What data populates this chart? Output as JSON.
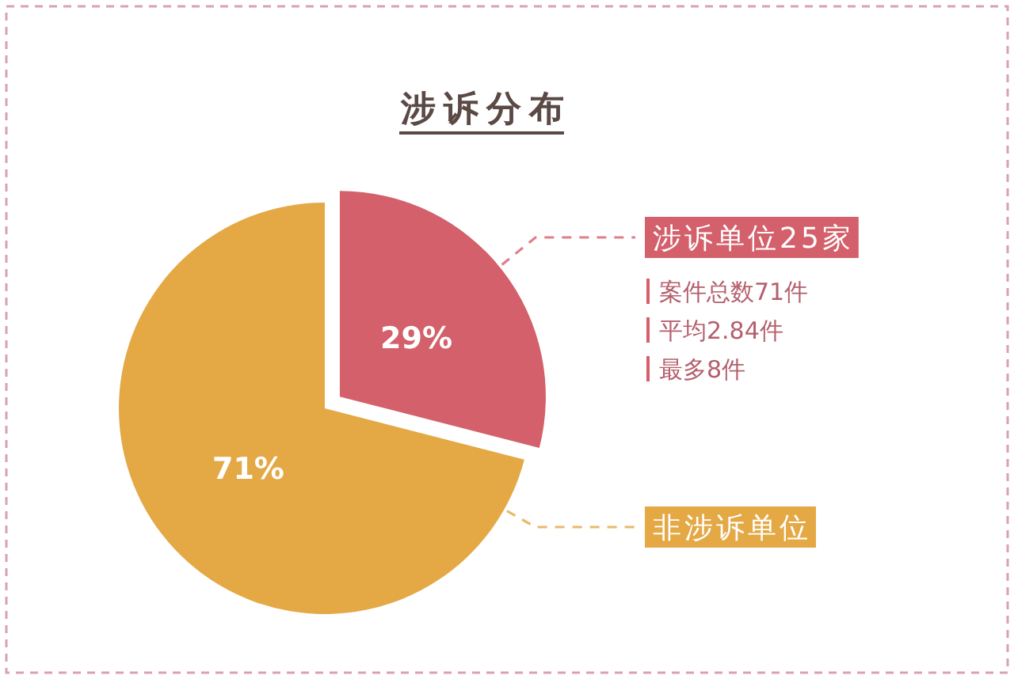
{
  "chart_data": {
    "type": "pie",
    "title": "涉诉分布",
    "categories": [
      "涉诉单位25家",
      "非涉诉单位"
    ],
    "values": [
      29,
      71
    ],
    "colors": [
      "#d3606b",
      "#e4a845"
    ],
    "value_labels": [
      "29%",
      "71%"
    ],
    "annotations": [
      "案件总数71件",
      "平均2.84件",
      "最多8件"
    ]
  }
}
